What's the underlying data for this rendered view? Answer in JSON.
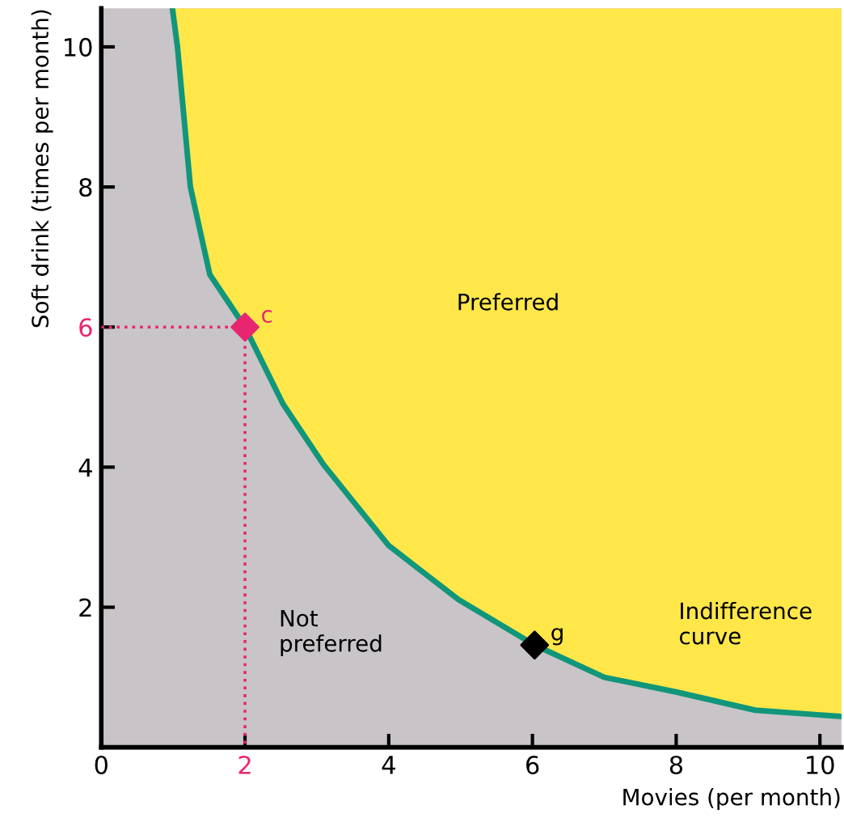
{
  "chart_data": {
    "type": "line",
    "xlabel": "Movies (per month)",
    "ylabel": "Soft drink (times per month)",
    "xlim": [
      0,
      10.3
    ],
    "ylim": [
      0,
      10.55
    ],
    "xticks": [
      0,
      2,
      4,
      6,
      8,
      10
    ],
    "yticks": [
      2,
      4,
      6,
      8,
      10
    ],
    "grid": false,
    "series": [
      {
        "color": "#11967a",
        "x": [
          0.99,
          1.06,
          1.24,
          1.51,
          2,
          2.53,
          3.09,
          4.0,
          4.97,
          6.03,
          7.0,
          8.0,
          9.1,
          10.3
        ],
        "values": [
          10.55,
          10.0,
          8.0,
          6.75,
          6,
          4.9,
          4.04,
          2.88,
          2.11,
          1.46,
          1.0,
          0.79,
          0.53,
          0.44
        ]
      },
      {
        "type": "line",
        "color": "#e8266f",
        "line_style": "dotted",
        "x": [
          0,
          2,
          2
        ],
        "values": [
          6,
          6,
          0
        ]
      },
      {
        "type": "scatter",
        "color": "#e8266f",
        "marker": "diamond",
        "x": [
          2
        ],
        "values": [
          6
        ]
      },
      {
        "type": "scatter",
        "color": "#000000",
        "marker": "diamond",
        "x": [
          6.03
        ],
        "values": [
          1.46
        ]
      }
    ],
    "annotations": [
      {
        "text": "c",
        "x": 2,
        "y": 6
      },
      {
        "text": "g",
        "x": 6.03,
        "y": 1.46
      },
      "Preferred",
      "Not preferred",
      "Indifference curve"
    ]
  }
}
